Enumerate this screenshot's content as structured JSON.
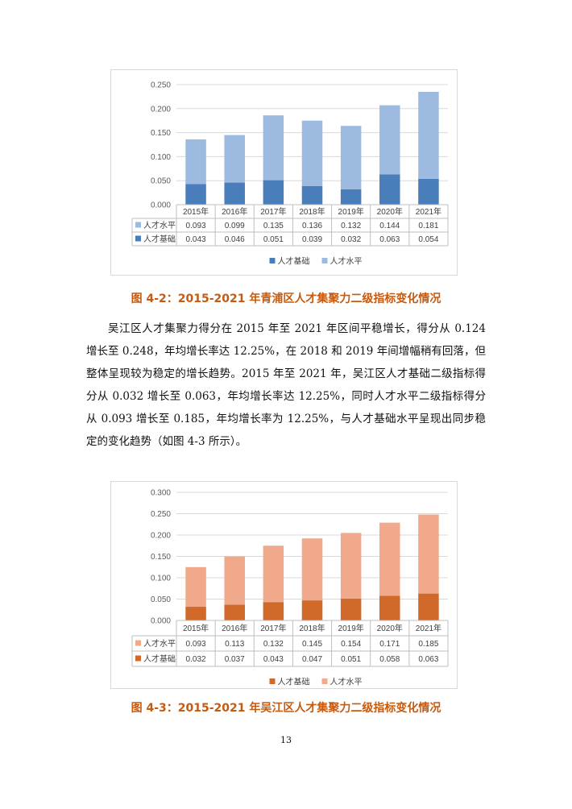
{
  "chart_data": [
    {
      "type": "bar",
      "stacked": true,
      "categories": [
        "2015年",
        "2016年",
        "2017年",
        "2018年",
        "2019年",
        "2020年",
        "2021年"
      ],
      "series": [
        {
          "name": "人才基础",
          "values": [
            0.043,
            0.046,
            0.051,
            0.039,
            0.032,
            0.063,
            0.054
          ],
          "color": "#4a7ebb"
        },
        {
          "name": "人才水平",
          "values": [
            0.093,
            0.099,
            0.135,
            0.136,
            0.132,
            0.144,
            0.181
          ],
          "color": "#9dbbe0"
        }
      ],
      "table_rows": [
        {
          "label": "人才水平",
          "values": [
            "0.093",
            "0.099",
            "0.135",
            "0.136",
            "0.132",
            "0.144",
            "0.181"
          ]
        },
        {
          "label": "人才基础",
          "values": [
            "0.043",
            "0.046",
            "0.051",
            "0.039",
            "0.032",
            "0.063",
            "0.054"
          ]
        }
      ],
      "ylim": [
        0,
        0.25
      ],
      "yticks": [
        "0.000",
        "0.050",
        "0.100",
        "0.150",
        "0.200",
        "0.250"
      ],
      "grid": true,
      "legend": "bottom"
    },
    {
      "type": "bar",
      "stacked": true,
      "categories": [
        "2015年",
        "2016年",
        "2017年",
        "2018年",
        "2019年",
        "2020年",
        "2021年"
      ],
      "series": [
        {
          "name": "人才基础",
          "values": [
            0.032,
            0.037,
            0.043,
            0.047,
            0.051,
            0.058,
            0.063
          ],
          "color": "#d0692a"
        },
        {
          "name": "人才水平",
          "values": [
            0.093,
            0.113,
            0.132,
            0.145,
            0.154,
            0.171,
            0.185
          ],
          "color": "#f0a98a"
        }
      ],
      "table_rows": [
        {
          "label": "人才水平",
          "values": [
            "0.093",
            "0.113",
            "0.132",
            "0.145",
            "0.154",
            "0.171",
            "0.185"
          ]
        },
        {
          "label": "人才基础",
          "values": [
            "0.032",
            "0.037",
            "0.043",
            "0.047",
            "0.051",
            "0.058",
            "0.063"
          ]
        }
      ],
      "ylim": [
        0,
        0.3
      ],
      "yticks": [
        "0.000",
        "0.050",
        "0.100",
        "0.150",
        "0.200",
        "0.250",
        "0.300"
      ],
      "grid": true,
      "legend": "bottom"
    }
  ],
  "caption1": "图 4-2：2015-2021 年青浦区人才集聚力二级指标变化情况",
  "paragraph": "吴江区人才集聚力得分在 2015 年至 2021 年区间平稳增长，得分从 0.124 增长至 0.248，年均增长率达 12.25%，在 2018 和 2019 年间增幅稍有回落，但整体呈现较为稳定的增长趋势。2015 年至 2021 年，吴江区人才基础二级指标得分从 0.032 增长至 0.063，年均增长率达 12.25%，同时人才水平二级指标得分从 0.093 增长至 0.185，年均增长率为 12.25%，与人才基础水平呈现出同步稳定的变化趋势（如图 4-3 所示）。",
  "caption2": "图 4-3：2015-2021 年吴江区人才集聚力二级指标变化情况",
  "page_number": "13"
}
